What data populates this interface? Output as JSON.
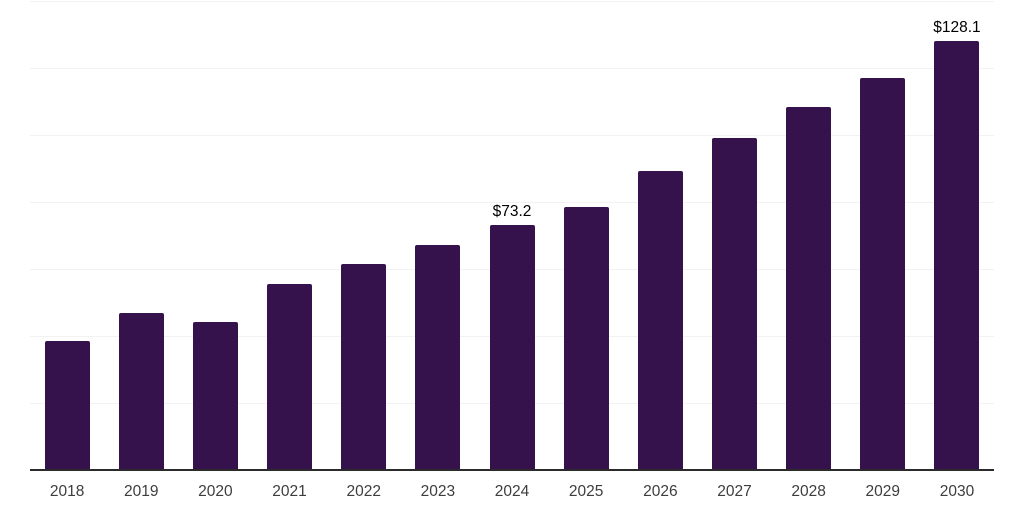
{
  "chart_data": {
    "type": "bar",
    "title": "",
    "xlabel": "",
    "ylabel": "",
    "categories": [
      "2018",
      "2019",
      "2020",
      "2021",
      "2022",
      "2023",
      "2024",
      "2025",
      "2026",
      "2027",
      "2028",
      "2029",
      "2030"
    ],
    "values": [
      38.4,
      46.8,
      44.1,
      55.4,
      61.6,
      67.3,
      73.2,
      78.6,
      89.4,
      99.0,
      108.3,
      117.0,
      128.1
    ],
    "bar_labels": [
      "",
      "",
      "",
      "",
      "",
      "",
      "$73.2",
      "",
      "",
      "",
      "",
      "",
      "$128.1"
    ],
    "ylim": [
      0,
      140
    ],
    "gridline_step": 20,
    "grid": "horizontal-only",
    "y_axis_labels_visible": false,
    "legend": "none",
    "bar_color": "#36124d",
    "gridline_color": "#f2f2f2",
    "axis_line_color": "#2b2b2b",
    "tick_label_color": "#3d3d3d",
    "data_label_color": "#000000",
    "background_color": "#ffffff"
  }
}
